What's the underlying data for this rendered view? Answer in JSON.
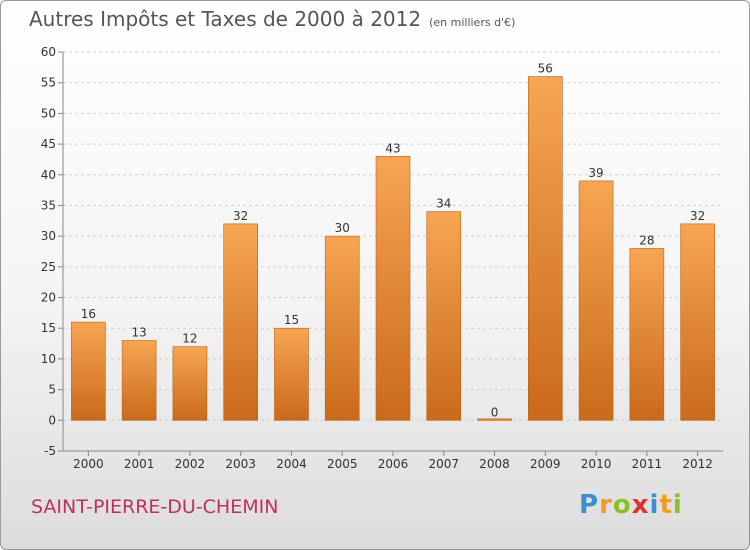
{
  "header": {
    "title": "Autres Impôts et Taxes de 2000 à 2012",
    "unit": "(en milliers d'€)"
  },
  "footer": {
    "commune": "SAINT-PIERRE-DU-CHEMIN",
    "logo": "Proxiti"
  },
  "colors": {
    "bar_top": "#f7a552",
    "bar_bottom": "#c96a1a",
    "grid": "#d0d0d0",
    "axis_text": "#333333",
    "commune_text": "#c0305a"
  },
  "chart_data": {
    "type": "bar",
    "title": "Autres Impôts et Taxes de 2000 à 2012",
    "xlabel": "",
    "ylabel": "",
    "categories": [
      "2000",
      "2001",
      "2002",
      "2003",
      "2004",
      "2005",
      "2006",
      "2007",
      "2008",
      "2009",
      "2010",
      "2011",
      "2012"
    ],
    "values": [
      16,
      13,
      12,
      32,
      15,
      30,
      43,
      34,
      0,
      56,
      39,
      28,
      32
    ],
    "ylim": [
      -5,
      60
    ],
    "yticks": [
      -5,
      0,
      5,
      10,
      15,
      20,
      25,
      30,
      35,
      40,
      45,
      50,
      55,
      60
    ],
    "grid": true,
    "data_labels": true
  }
}
